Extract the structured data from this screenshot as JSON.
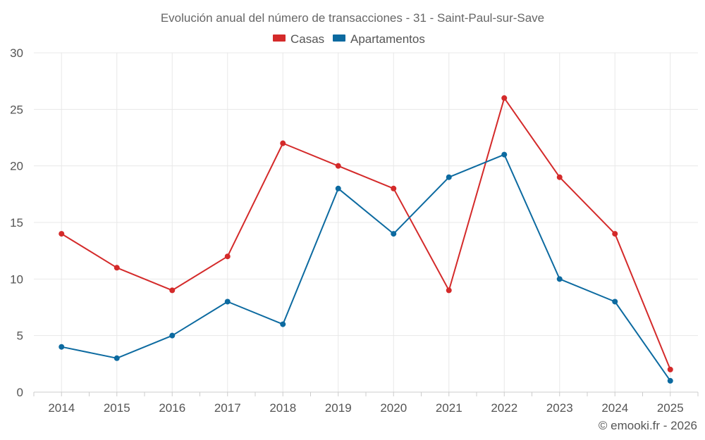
{
  "chart_data": {
    "type": "line",
    "title": "Evolución anual del número de transacciones - 31 - Saint-Paul-sur-Save",
    "categories": [
      "2014",
      "2015",
      "2016",
      "2017",
      "2018",
      "2019",
      "2020",
      "2021",
      "2022",
      "2023",
      "2024",
      "2025"
    ],
    "series": [
      {
        "name": "Casas",
        "color": "#d42a2a",
        "values": [
          14,
          11,
          9,
          12,
          22,
          20,
          18,
          9,
          26,
          19,
          14,
          2
        ]
      },
      {
        "name": "Apartamentos",
        "color": "#0c6aa0",
        "values": [
          4,
          3,
          5,
          8,
          6,
          18,
          14,
          19,
          21,
          10,
          8,
          1
        ]
      }
    ],
    "ylim": [
      0,
      30
    ],
    "yticks": [
      "0",
      "5",
      "10",
      "15",
      "20",
      "25",
      "30"
    ],
    "xlabel": "",
    "ylabel": "",
    "legend": "top-center",
    "grid": true
  },
  "credit": "© emooki.fr - 2026"
}
